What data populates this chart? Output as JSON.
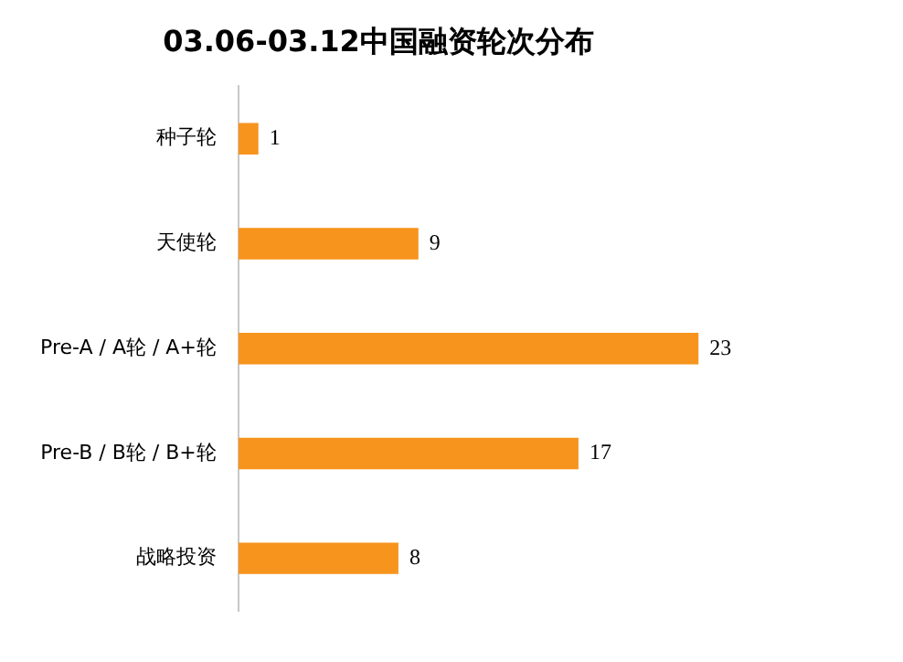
{
  "chart_data": {
    "type": "bar",
    "orientation": "horizontal",
    "title": "03.06-03.12中国融资轮次分布",
    "categories": [
      "种子轮",
      "天使轮",
      "Pre-A / A轮 / A+轮",
      "Pre-B / B轮 / B+轮",
      "战略投资"
    ],
    "values": [
      1,
      9,
      23,
      17,
      8
    ],
    "color": "#f7941d",
    "data_labels": true,
    "legend": false
  }
}
